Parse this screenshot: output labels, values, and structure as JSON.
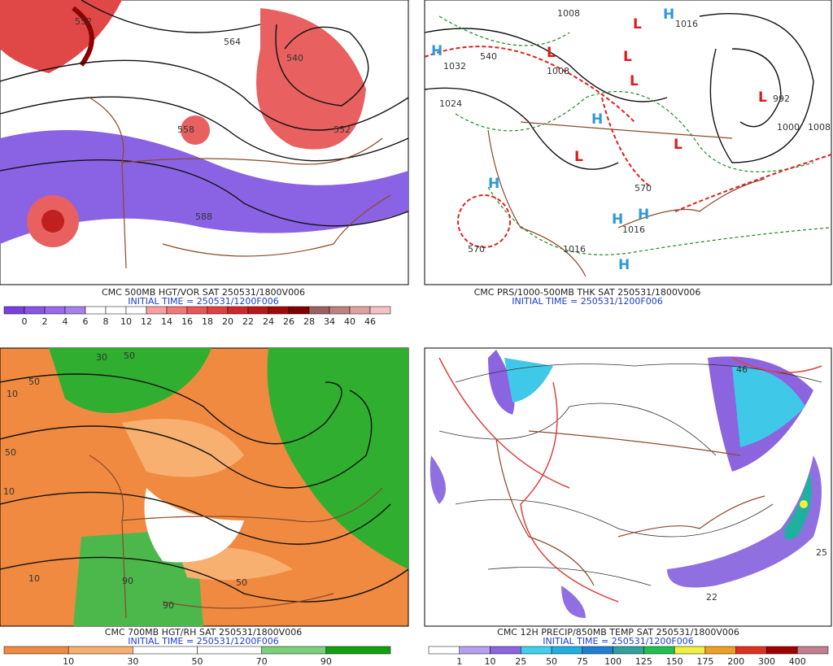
{
  "panels": [
    {
      "caption": "CMC 500MB HGT/VOR SAT 250531/1800V006",
      "initial_time": "INITIAL TIME = 250531/1200F006",
      "colorbar": {
        "colors": [
          "#7a3fe0",
          "#8a55e6",
          "#9a6aea",
          "#a880ee",
          "#ffffff",
          "#ffffff",
          "#ffffff",
          "#f8a0a0",
          "#f07878",
          "#e85858",
          "#e04040",
          "#d02828",
          "#b81818",
          "#a00a0a",
          "#800000",
          "#a06060",
          "#c08080",
          "#e0a0a0",
          "#f4c0c8"
        ],
        "labels": [
          "0",
          "2",
          "4",
          "6",
          "8",
          "10",
          "12",
          "14",
          "16",
          "18",
          "20",
          "22",
          "24",
          "26",
          "28",
          "34",
          "40",
          "46"
        ]
      },
      "map_labels": [
        "552",
        "564",
        "540",
        "552",
        "558",
        "588"
      ]
    },
    {
      "caption": "CMC PRS/1000-500MB THK SAT 250531/1800V006",
      "initial_time": "INITIAL TIME = 250531/1200F006",
      "map_labels": [
        "1008",
        "H",
        "1016",
        "H",
        "1032",
        "540",
        "L",
        "1008",
        "L",
        "L",
        "L",
        "1024",
        "H",
        "L",
        "L",
        "H",
        "570",
        "H",
        "H",
        "1016",
        "1016",
        "H",
        "570",
        "L",
        "992",
        "1000",
        "1008"
      ]
    },
    {
      "caption": "CMC 700MB HGT/RH SAT 250531/1800V006",
      "initial_time": "INITIAL TIME = 250531/1200F006",
      "colorbar": {
        "colors": [
          "#f08a40",
          "#f8b070",
          "#ffffff",
          "#ffffff",
          "#7cd07c",
          "#10a010"
        ],
        "labels": [
          "10",
          "30",
          "50",
          "70",
          "90"
        ]
      },
      "map_labels": [
        "10",
        "50",
        "30",
        "50",
        "50",
        "10",
        "10",
        "90",
        "90",
        "50"
      ]
    },
    {
      "caption": "CMC 12H PRECIP/850MB TEMP SAT 250531/1800V006",
      "initial_time": "INITIAL TIME = 250531/1200F006",
      "colorbar": {
        "colors": [
          "#ffffff",
          "#b8a0f0",
          "#8c64e0",
          "#40d0f0",
          "#20b0e0",
          "#2080d0",
          "#30a0a0",
          "#20c050",
          "#f0f040",
          "#f0a020",
          "#e03020",
          "#a00000",
          "#c08090"
        ],
        "labels": [
          "1",
          "10",
          "25",
          "50",
          "75",
          "100",
          "125",
          "150",
          "175",
          "200",
          "300",
          "400"
        ]
      },
      "map_labels": [
        "46",
        "25",
        "22"
      ]
    }
  ]
}
